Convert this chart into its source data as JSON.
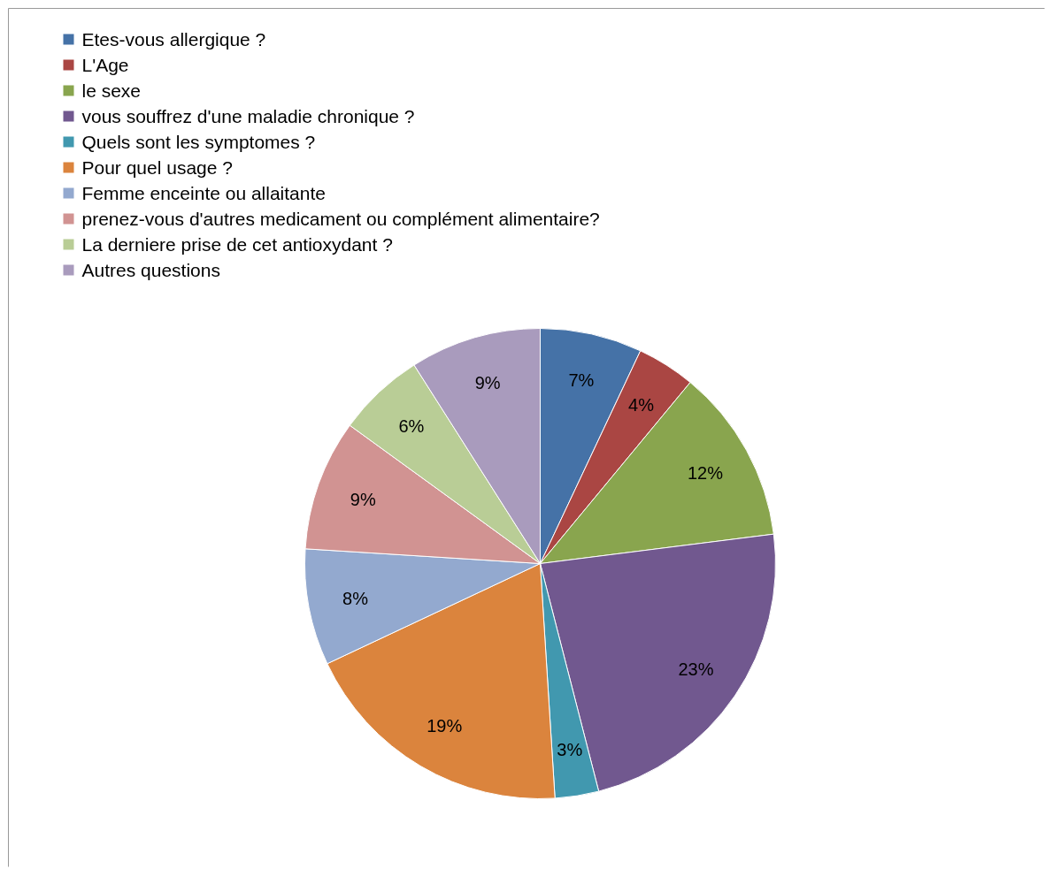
{
  "chart_data": {
    "type": "pie",
    "legend": "top left",
    "categories": [
      "Etes-vous allergique ?",
      "L'Age",
      "le sexe",
      "vous souffrez d'une maladie chronique ?",
      "Quels sont les symptomes ?",
      "Pour quel usage ?",
      "Femme enceinte ou allaitante",
      "prenez-vous d'autres medicament ou complément alimentaire?",
      "La derniere prise de cet antioxydant ?",
      "Autres questions"
    ],
    "values": [
      7,
      4,
      12,
      23,
      3,
      19,
      8,
      9,
      6,
      9
    ],
    "value_labels": [
      "7%",
      "4%",
      "12%",
      "23%",
      "3%",
      "19%",
      "8%",
      "9%",
      "6%",
      "9%"
    ],
    "colors": [
      "#4572a7",
      "#aa4643",
      "#89a54e",
      "#71588f",
      "#4198af",
      "#db843d",
      "#93a9cf",
      "#d19392",
      "#b9cd96",
      "#a99bbd"
    ]
  }
}
